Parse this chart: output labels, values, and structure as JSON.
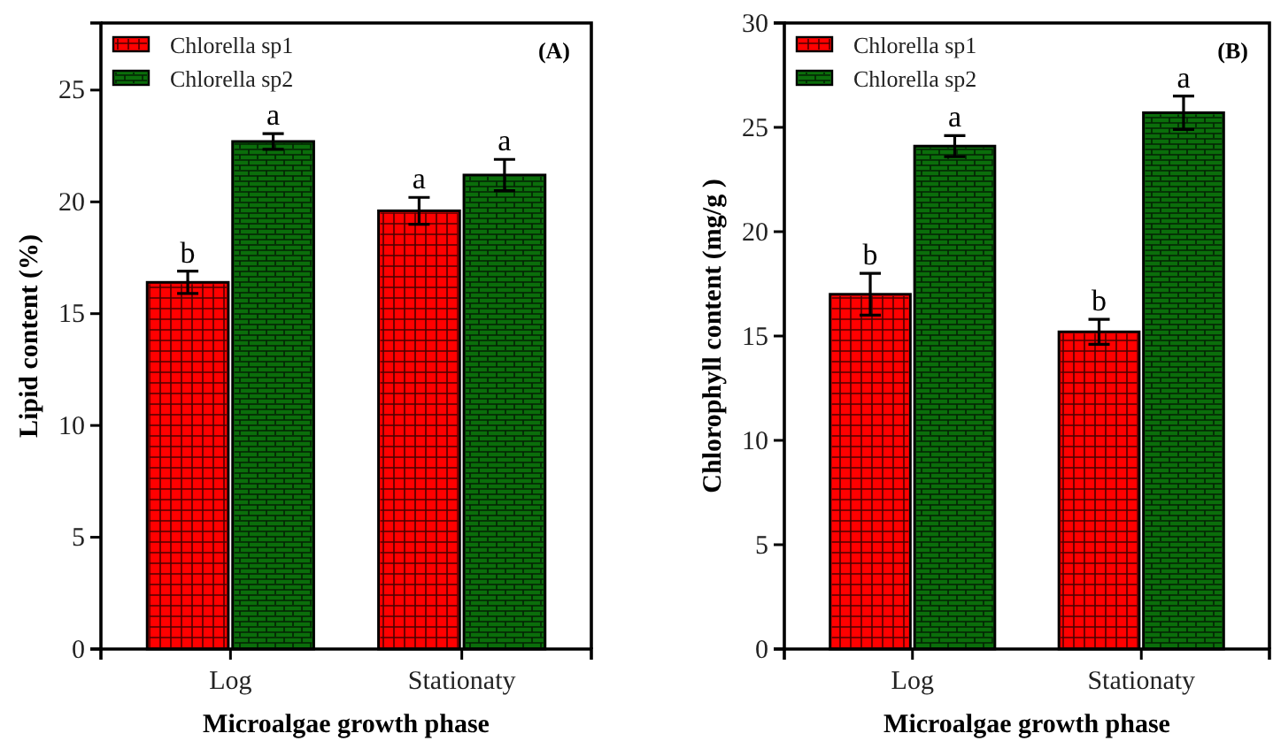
{
  "chart_data": [
    {
      "type": "bar",
      "title": "(A)",
      "xlabel": "Microalgae growth phase",
      "ylabel": "Lipid content (%)",
      "categories": [
        "Log",
        "Stationaty"
      ],
      "series": [
        {
          "name": "Chlorella sp1",
          "color": "#ff0000",
          "values": [
            16.4,
            19.6
          ],
          "errors": [
            0.5,
            0.6
          ]
        },
        {
          "name": "Chlorella sp2",
          "color": "#0b6e0b",
          "values": [
            22.7,
            21.2
          ],
          "errors": [
            0.35,
            0.7
          ]
        }
      ],
      "ylim": [
        0,
        28
      ],
      "yticks": [
        0,
        5,
        10,
        15,
        20,
        25
      ],
      "grid": false,
      "legend": "top left",
      "annotations": [
        {
          "text": "b",
          "x": "Log",
          "y": 16.4
        },
        {
          "text": "a",
          "x": "Log",
          "y": 22.7
        },
        {
          "text": "a",
          "x": "Stationaty",
          "y": 19.6
        },
        {
          "text": "a",
          "x": "Stationaty",
          "y": 21.2
        }
      ]
    },
    {
      "type": "bar",
      "title": "(B)",
      "xlabel": "Microalgae growth phase",
      "ylabel": "Chlorophyll content (mg/g )",
      "categories": [
        "Log",
        "Stationaty"
      ],
      "series": [
        {
          "name": "Chlorella sp1",
          "color": "#ff0000",
          "values": [
            17.0,
            15.2
          ],
          "errors": [
            1.0,
            0.6
          ]
        },
        {
          "name": "Chlorella sp2",
          "color": "#0b6e0b",
          "values": [
            24.1,
            25.7
          ],
          "errors": [
            0.5,
            0.8
          ]
        }
      ],
      "ylim": [
        0,
        30
      ],
      "yticks": [
        0,
        5,
        10,
        15,
        20,
        25,
        30
      ],
      "grid": false,
      "legend": "top left",
      "annotations": [
        {
          "text": "b",
          "x": "Log",
          "y": 17.0
        },
        {
          "text": "a",
          "x": "Log",
          "y": 24.1
        },
        {
          "text": "b",
          "x": "Stationaty",
          "y": 15.2
        },
        {
          "text": "a",
          "x": "Stationaty",
          "y": 25.7
        }
      ]
    }
  ]
}
